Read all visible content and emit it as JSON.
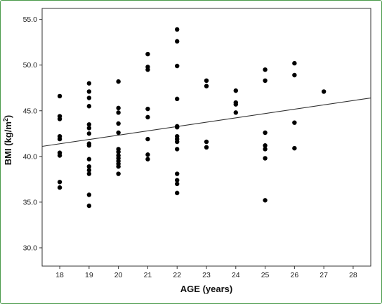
{
  "chart_data": {
    "type": "scatter",
    "xlabel": "AGE (years)",
    "ylabel_main": "BMI (kg/m",
    "ylabel_sup": "2",
    "ylabel_close": ")",
    "xlim": [
      17.4,
      28.6
    ],
    "ylim": [
      28.0,
      56.2
    ],
    "xticks": [
      18,
      19,
      20,
      21,
      22,
      23,
      24,
      25,
      26,
      27,
      28
    ],
    "yticks": [
      {
        "value": 30.0,
        "label": "30.0"
      },
      {
        "value": 35.0,
        "label": "35.0"
      },
      {
        "value": 40.0,
        "label": "40.0"
      },
      {
        "value": 45.0,
        "label": "45.0"
      },
      {
        "value": 50.0,
        "label": "50.0"
      },
      {
        "value": 55.0,
        "label": "55.0"
      }
    ],
    "grid": false,
    "fit_line": {
      "x": [
        17.4,
        28.6
      ],
      "y": [
        41.1,
        46.4
      ]
    },
    "points": [
      [
        18,
        46.6
      ],
      [
        18,
        44.4
      ],
      [
        18,
        44.1
      ],
      [
        18,
        42.2
      ],
      [
        18,
        41.9
      ],
      [
        18,
        40.4
      ],
      [
        18,
        40.1
      ],
      [
        18,
        37.2
      ],
      [
        18,
        36.6
      ],
      [
        19,
        48.0
      ],
      [
        19,
        47.1
      ],
      [
        19,
        46.4
      ],
      [
        19,
        45.5
      ],
      [
        19,
        43.5
      ],
      [
        19,
        43.1
      ],
      [
        19,
        42.5
      ],
      [
        19,
        41.4
      ],
      [
        19,
        41.2
      ],
      [
        19,
        39.7
      ],
      [
        19,
        38.9
      ],
      [
        19,
        38.5
      ],
      [
        19,
        38.1
      ],
      [
        19,
        35.8
      ],
      [
        19,
        34.6
      ],
      [
        20,
        48.2
      ],
      [
        20,
        45.3
      ],
      [
        20,
        44.8
      ],
      [
        20,
        43.6
      ],
      [
        20,
        42.6
      ],
      [
        20,
        40.8
      ],
      [
        20,
        40.5
      ],
      [
        20,
        40.1
      ],
      [
        20,
        39.8
      ],
      [
        20,
        39.5
      ],
      [
        20,
        39.2
      ],
      [
        20,
        38.9
      ],
      [
        20,
        38.1
      ],
      [
        21,
        51.2
      ],
      [
        21,
        49.8
      ],
      [
        21,
        49.5
      ],
      [
        21,
        45.2
      ],
      [
        21,
        44.3
      ],
      [
        21,
        41.9
      ],
      [
        21,
        40.2
      ],
      [
        21,
        39.7
      ],
      [
        22,
        53.9
      ],
      [
        22,
        52.6
      ],
      [
        22,
        49.9
      ],
      [
        22,
        46.3
      ],
      [
        22,
        43.3
      ],
      [
        22,
        43.2
      ],
      [
        22,
        42.2
      ],
      [
        22,
        41.9
      ],
      [
        22,
        41.6
      ],
      [
        22,
        40.8
      ],
      [
        22,
        38.1
      ],
      [
        22,
        37.4
      ],
      [
        22,
        37.0
      ],
      [
        22,
        36.0
      ],
      [
        23,
        48.3
      ],
      [
        23,
        47.7
      ],
      [
        23,
        41.6
      ],
      [
        23,
        41.0
      ],
      [
        24,
        47.2
      ],
      [
        24,
        45.9
      ],
      [
        24,
        45.7
      ],
      [
        24,
        44.8
      ],
      [
        25,
        49.5
      ],
      [
        25,
        48.3
      ],
      [
        25,
        42.6
      ],
      [
        25,
        41.2
      ],
      [
        25,
        40.8
      ],
      [
        25,
        39.8
      ],
      [
        25,
        35.2
      ],
      [
        26,
        50.2
      ],
      [
        26,
        48.9
      ],
      [
        26,
        43.7
      ],
      [
        26,
        40.9
      ],
      [
        27,
        47.1
      ]
    ]
  },
  "colors": {
    "frame_border": "#4a9a4a",
    "point": "#000000",
    "axis": "#333333",
    "fit_line": "#333333"
  }
}
